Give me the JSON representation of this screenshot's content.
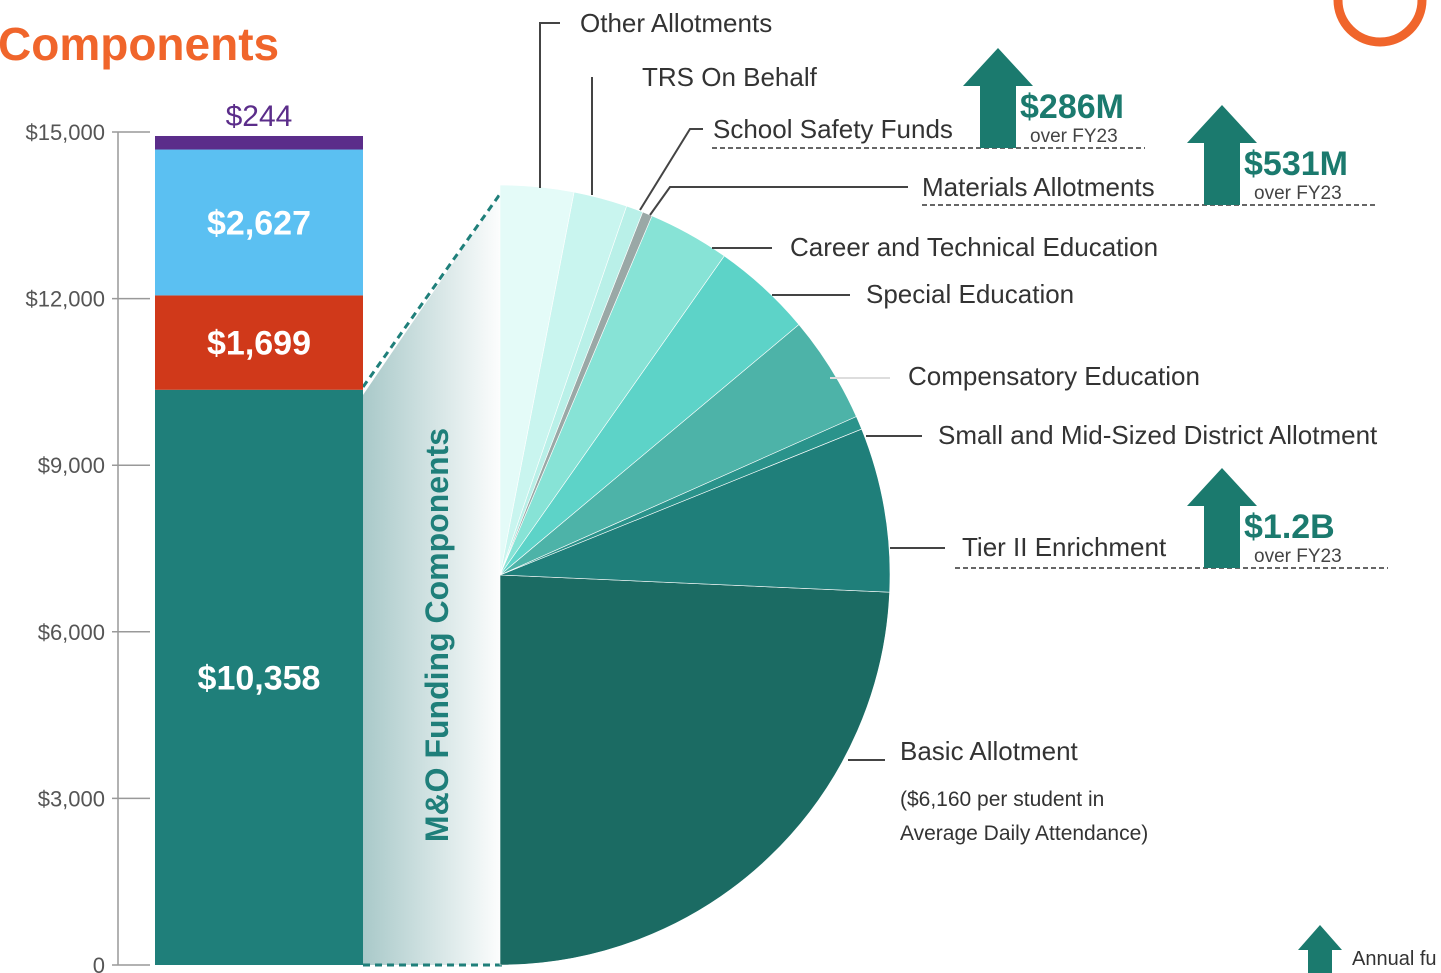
{
  "chart_data": [
    {
      "type": "stacked_bar",
      "title": "Components",
      "categories": [
        null
      ],
      "series": [
        {
          "color": "#1f7f7a",
          "values": [
            10358
          ],
          "value_labels": [
            "$10,358"
          ]
        },
        {
          "color": "#d0391a",
          "values": [
            1699
          ],
          "value_labels": [
            "$1,699"
          ]
        },
        {
          "color": "#5bc0f2",
          "values": [
            2627
          ],
          "value_labels": [
            "$2,627"
          ]
        },
        {
          "color": "#5b2d8a",
          "values": [
            244
          ],
          "value_labels": [
            "$244"
          ]
        }
      ],
      "ylim": [
        0,
        15000
      ],
      "yticks": [
        0,
        {
          "value": 3000,
          "label": "$3,000"
        },
        {
          "value": 6000,
          "label": "$6,000"
        },
        {
          "value": 9000,
          "label": "$9,000"
        },
        {
          "value": 12000,
          "label": "$12,000"
        },
        {
          "value": 15000,
          "label": "$15,000"
        }
      ]
    },
    {
      "type": "pie",
      "label": "M&O Funding Components",
      "categories": [
        "Basic Allotment",
        "Tier II Enrichment",
        "Small and Mid-Sized District Allotment",
        "Compensatory Education",
        "Special Education",
        "Career and Technical Education",
        "Materials Allotments",
        "School Safety Funds",
        "TRS On Behalf",
        "Other Allotments"
      ],
      "values": [
        5035,
        1410,
        115,
        920,
        860,
        700,
        85,
        145,
        460,
        630
      ],
      "colors": [
        "#1b6b63",
        "#1f7f7a",
        "#2a938b",
        "#4db3a8",
        "#5dd3c8",
        "#87e3d6",
        "#9aa8a6",
        "#b9f0e8",
        "#c9f5ef",
        "#e4fbf8"
      ],
      "note_lines": [
        "($6,160 per student in",
        "Average Daily Attendance)"
      ],
      "annotations": [
        {
          "text": "$286M",
          "subtext": "over FY23"
        },
        {
          "text": "$531M",
          "subtext": "over FY23"
        },
        {
          "text": "$1.2B",
          "subtext": "over FY23"
        }
      ],
      "legend_text": "Annual fu"
    }
  ]
}
